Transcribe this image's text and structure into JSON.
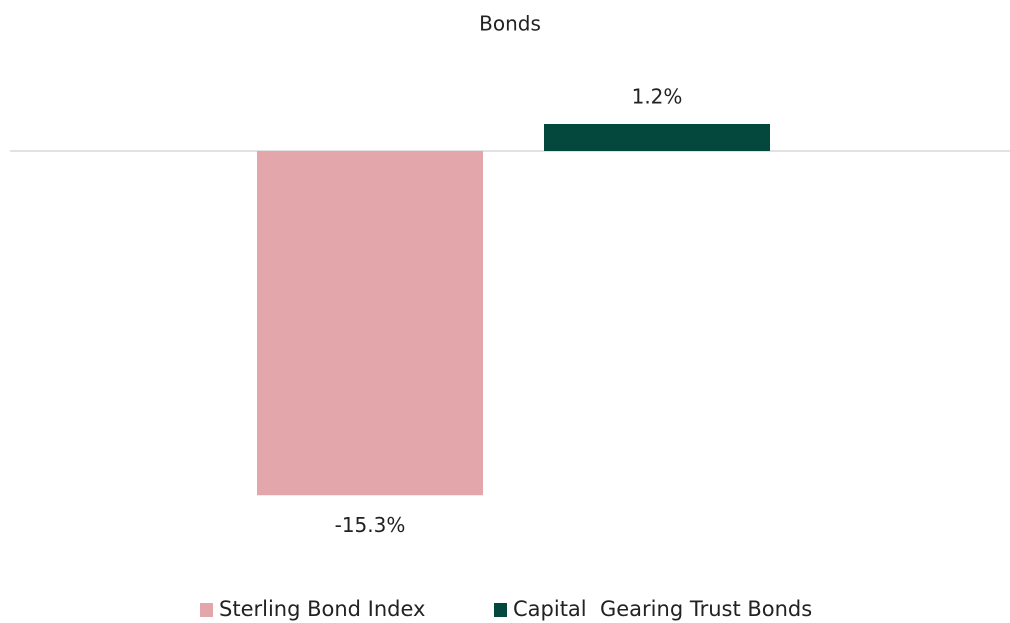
{
  "chart_data": {
    "type": "bar",
    "title": "Bonds",
    "series": [
      {
        "name": "Sterling Bond Index",
        "color": "#e3a7ab",
        "values": [
          -15.3
        ],
        "value_labels": [
          "-15.3%"
        ]
      },
      {
        "name": "Capital  Gearing Trust Bonds",
        "color": "#03473d",
        "values": [
          1.2
        ],
        "value_labels": [
          "1.2%"
        ]
      }
    ],
    "ylim": [
      -17,
      2
    ],
    "legend": "bottom"
  }
}
